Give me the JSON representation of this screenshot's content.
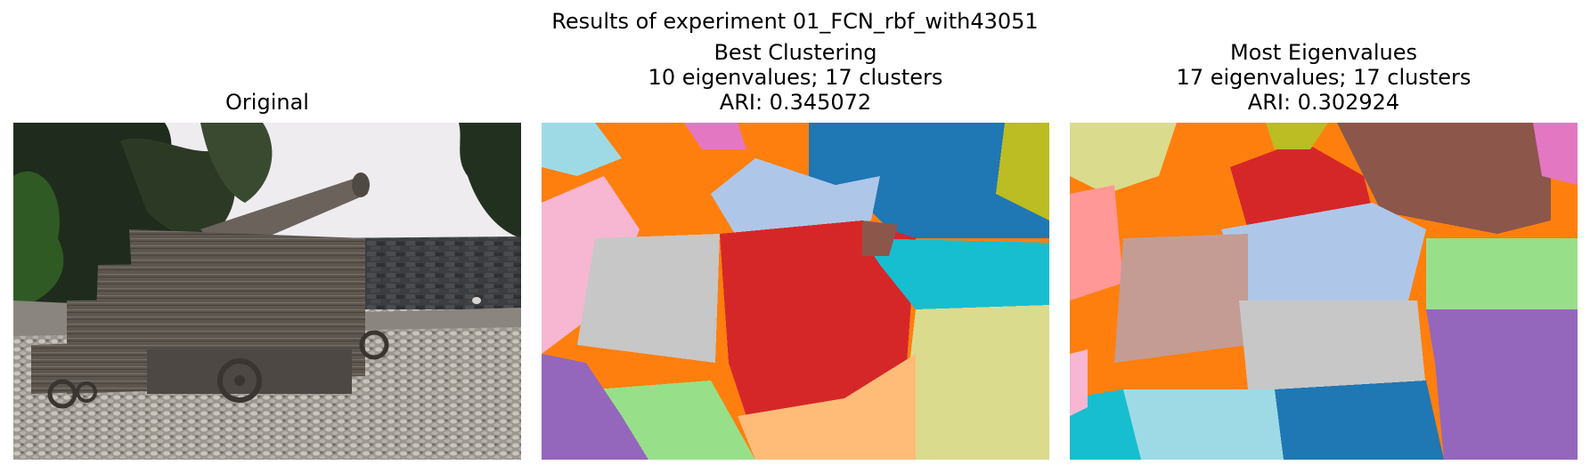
{
  "figure": {
    "title": "Results of experiment 01_FCN_rbf_with43051"
  },
  "panels": [
    {
      "title_lines": [
        "Original"
      ]
    },
    {
      "title_lines": [
        "Best Clustering",
        "10 eigenvalues; 17 clusters",
        "ARI: 0.345072"
      ]
    },
    {
      "title_lines": [
        "Most Eigenvalues",
        "17 eigenvalues; 17 clusters",
        "ARI: 0.302924"
      ]
    }
  ],
  "colors": {
    "orange": "#ff7f0e",
    "blue": "#1f77b4",
    "red": "#d62728",
    "light_blue": "#aec7e8",
    "cyan": "#17becf",
    "light_cyan": "#9edae5",
    "pink": "#f7b6d2",
    "hot_pink": "#e377c2",
    "gray": "#c7c7c7",
    "light_orange": "#ffbb78",
    "light_green": "#98df8a",
    "purple": "#9467bd",
    "olive": "#dbdb8d",
    "brown": "#8c564b",
    "rose": "#c49c94",
    "salmon": "#ff9896",
    "yellow_green": "#bcbd22"
  }
}
